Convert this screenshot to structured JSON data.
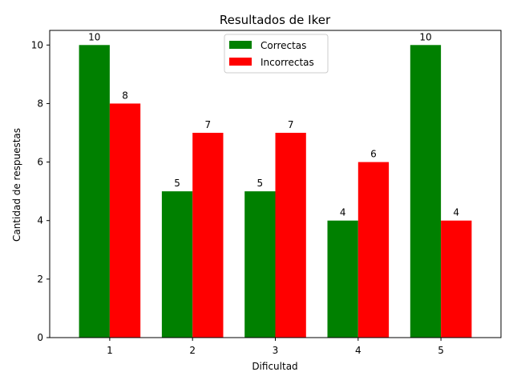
{
  "chart_data": {
    "type": "bar",
    "title": "Resultados de Iker",
    "xlabel": "Dificultad",
    "ylabel": "Cantidad de respuestas",
    "categories": [
      "1",
      "2",
      "3",
      "4",
      "5"
    ],
    "series": [
      {
        "name": "Correctas",
        "color": "#008000",
        "values": [
          10,
          5,
          5,
          4,
          10
        ]
      },
      {
        "name": "Incorrectas",
        "color": "#ff0000",
        "values": [
          8,
          7,
          7,
          6,
          4
        ]
      }
    ],
    "ylim": [
      0,
      10.5
    ],
    "yticks": [
      0,
      2,
      4,
      6,
      8,
      10
    ],
    "legend": "upper-center",
    "grid": false
  }
}
